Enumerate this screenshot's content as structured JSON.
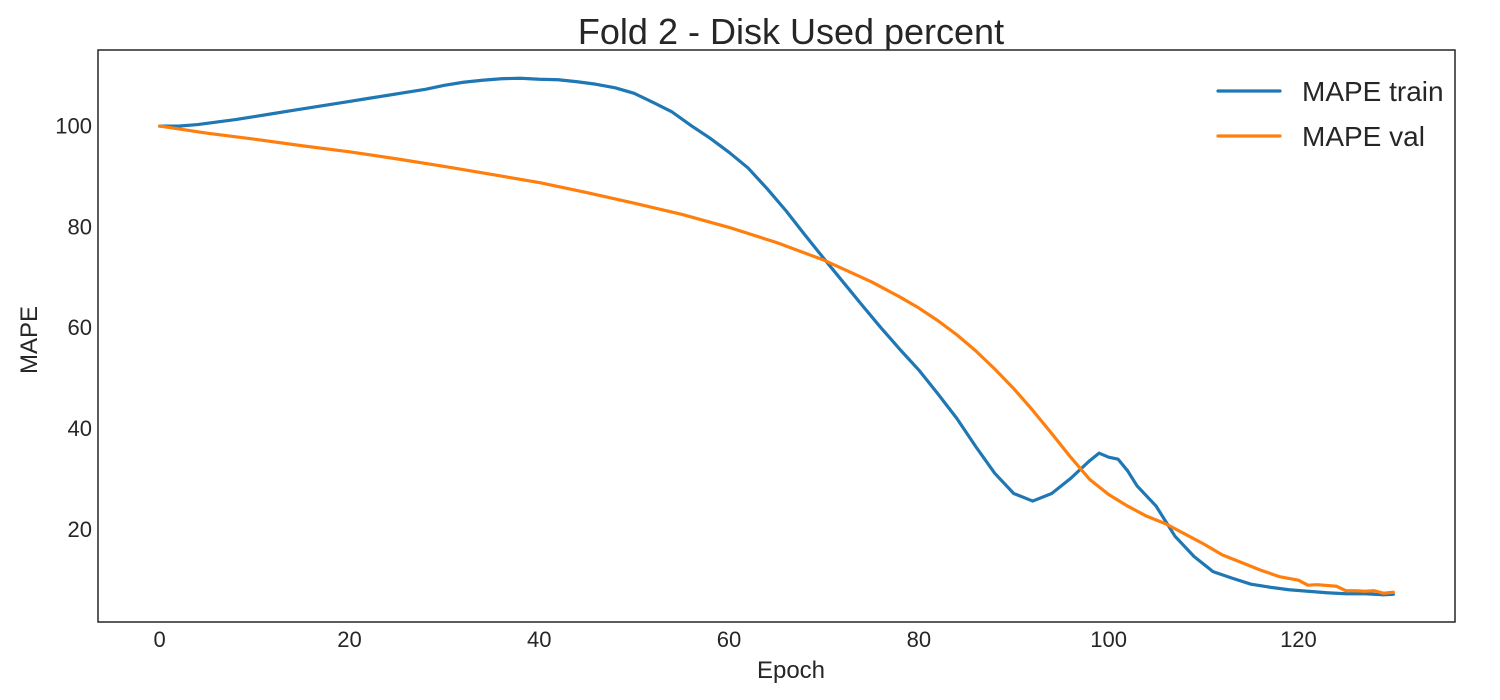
{
  "chart_data": {
    "type": "line",
    "title": "Fold 2 - Disk Used percent",
    "xlabel": "Epoch",
    "ylabel": "MAPE",
    "xlim": [
      -6.5,
      136.5
    ],
    "ylim": [
      1.5,
      115
    ],
    "xticks": [
      0,
      20,
      40,
      60,
      80,
      100,
      120
    ],
    "yticks": [
      20,
      40,
      60,
      80,
      100
    ],
    "grid": false,
    "legend_position": "top-right",
    "series": [
      {
        "name": "MAPE train",
        "color": "#1f77b4",
        "points": [
          [
            0,
            99.9
          ],
          [
            2,
            99.9
          ],
          [
            4,
            100.2
          ],
          [
            6,
            100.7
          ],
          [
            8,
            101.2
          ],
          [
            10,
            101.8
          ],
          [
            12,
            102.4
          ],
          [
            14,
            103.0
          ],
          [
            16,
            103.6
          ],
          [
            18,
            104.2
          ],
          [
            20,
            104.8
          ],
          [
            22,
            105.4
          ],
          [
            24,
            106.0
          ],
          [
            26,
            106.6
          ],
          [
            28,
            107.2
          ],
          [
            30,
            108.0
          ],
          [
            32,
            108.6
          ],
          [
            34,
            109.0
          ],
          [
            36,
            109.3
          ],
          [
            38,
            109.4
          ],
          [
            40,
            109.2
          ],
          [
            42,
            109.1
          ],
          [
            44,
            108.7
          ],
          [
            46,
            108.2
          ],
          [
            48,
            107.5
          ],
          [
            50,
            106.4
          ],
          [
            52,
            104.6
          ],
          [
            54,
            102.7
          ],
          [
            56,
            100.0
          ],
          [
            58,
            97.5
          ],
          [
            60,
            94.7
          ],
          [
            62,
            91.6
          ],
          [
            64,
            87.5
          ],
          [
            66,
            83.1
          ],
          [
            68,
            78.3
          ],
          [
            70,
            73.6
          ],
          [
            72,
            69.0
          ],
          [
            74,
            64.4
          ],
          [
            76,
            59.9
          ],
          [
            78,
            55.6
          ],
          [
            80,
            51.5
          ],
          [
            82,
            46.8
          ],
          [
            84,
            41.9
          ],
          [
            86,
            36.3
          ],
          [
            88,
            31.0
          ],
          [
            90,
            27.0
          ],
          [
            92,
            25.5
          ],
          [
            94,
            27.0
          ],
          [
            96,
            30.0
          ],
          [
            98,
            33.5
          ],
          [
            99,
            35.0
          ],
          [
            100,
            34.2
          ],
          [
            101,
            33.8
          ],
          [
            102,
            31.5
          ],
          [
            103,
            28.5
          ],
          [
            105,
            24.5
          ],
          [
            107,
            18.5
          ],
          [
            109,
            14.5
          ],
          [
            111,
            11.5
          ],
          [
            113,
            10.2
          ],
          [
            115,
            9.0
          ],
          [
            117,
            8.4
          ],
          [
            119,
            7.9
          ],
          [
            121,
            7.6
          ],
          [
            123,
            7.3
          ],
          [
            125,
            7.1
          ],
          [
            127,
            7.1
          ],
          [
            129,
            6.9
          ],
          [
            130,
            7.0
          ]
        ]
      },
      {
        "name": "MAPE val",
        "color": "#ff7f0e",
        "points": [
          [
            0,
            99.9
          ],
          [
            5,
            98.5
          ],
          [
            10,
            97.3
          ],
          [
            15,
            96.0
          ],
          [
            20,
            94.8
          ],
          [
            25,
            93.4
          ],
          [
            30,
            91.9
          ],
          [
            35,
            90.3
          ],
          [
            40,
            88.7
          ],
          [
            45,
            86.7
          ],
          [
            50,
            84.6
          ],
          [
            55,
            82.4
          ],
          [
            60,
            79.8
          ],
          [
            65,
            76.8
          ],
          [
            70,
            73.3
          ],
          [
            75,
            69.0
          ],
          [
            78,
            66.0
          ],
          [
            80,
            63.8
          ],
          [
            82,
            61.3
          ],
          [
            84,
            58.5
          ],
          [
            86,
            55.3
          ],
          [
            88,
            51.7
          ],
          [
            90,
            47.8
          ],
          [
            92,
            43.5
          ],
          [
            94,
            38.9
          ],
          [
            96,
            34.2
          ],
          [
            98,
            29.8
          ],
          [
            100,
            26.8
          ],
          [
            102,
            24.5
          ],
          [
            104,
            22.5
          ],
          [
            106,
            21.0
          ],
          [
            108,
            19.0
          ],
          [
            110,
            17.0
          ],
          [
            112,
            14.8
          ],
          [
            114,
            13.3
          ],
          [
            116,
            11.8
          ],
          [
            118,
            10.5
          ],
          [
            120,
            9.8
          ],
          [
            121,
            8.8
          ],
          [
            122,
            8.9
          ],
          [
            124,
            8.6
          ],
          [
            125,
            7.7
          ],
          [
            126,
            7.7
          ],
          [
            127,
            7.6
          ],
          [
            128,
            7.7
          ],
          [
            129,
            7.2
          ],
          [
            130,
            7.4
          ]
        ]
      }
    ]
  }
}
